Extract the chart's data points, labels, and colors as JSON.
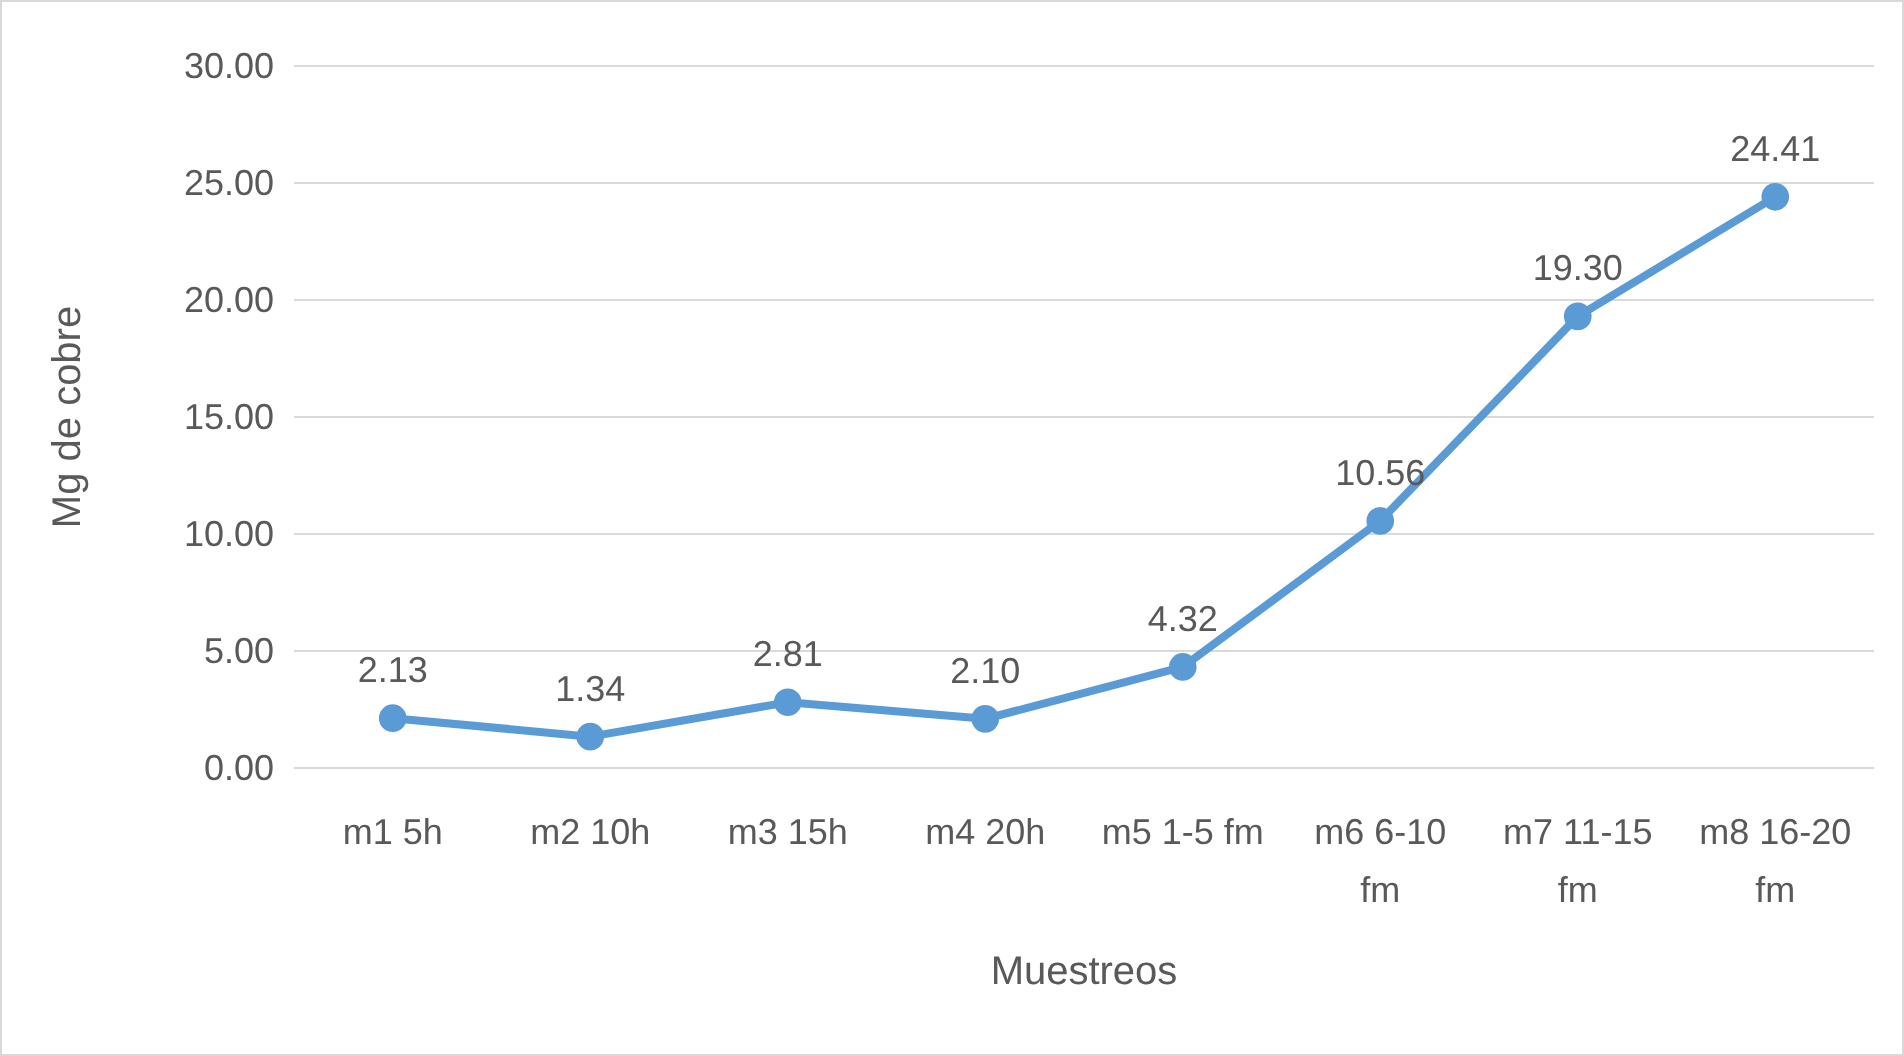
{
  "chart_data": {
    "type": "line",
    "xlabel": "Muestreos",
    "ylabel": "Mg de cobre",
    "categories": [
      "m1 5h",
      "m2 10h",
      "m3 15h",
      "m4 20h",
      "m5 1-5 fm",
      "m6 6-10 fm",
      "m7 11-15 fm",
      "m8 16-20 fm"
    ],
    "series": [
      {
        "color": "#5b9bd5",
        "values": [
          2.13,
          1.34,
          2.81,
          2.1,
          4.32,
          10.56,
          19.3,
          24.41
        ],
        "value_labels": [
          "2.13",
          "1.34",
          "2.81",
          "2.10",
          "4.32",
          "10.56",
          "19.30",
          "24.41"
        ]
      }
    ],
    "ylim": [
      0,
      30
    ],
    "yticks": [
      {
        "value": 0,
        "label": "0.00"
      },
      {
        "value": 5,
        "label": "5.00"
      },
      {
        "value": 10,
        "label": "10.00"
      },
      {
        "value": 15,
        "label": "15.00"
      },
      {
        "value": 20,
        "label": "20.00"
      },
      {
        "value": 25,
        "label": "25.00"
      },
      {
        "value": 30,
        "label": "30.00"
      }
    ],
    "grid": "y",
    "marker": "circle",
    "line_style": "solid"
  }
}
